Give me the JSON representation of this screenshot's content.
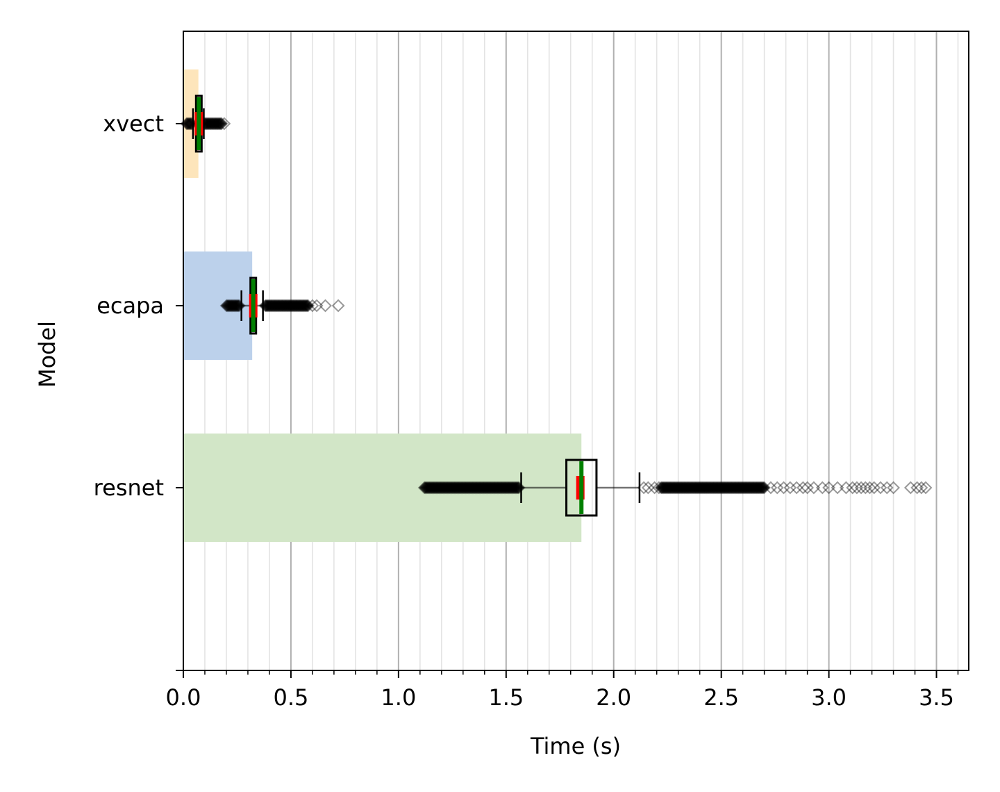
{
  "chart_data": {
    "type": "box",
    "orientation": "horizontal",
    "xlabel": "Time (s)",
    "ylabel": "Model",
    "xlim": [
      0.0,
      3.65
    ],
    "x_major_ticks": [
      0.0,
      0.5,
      1.0,
      1.5,
      2.0,
      2.5,
      3.0,
      3.5
    ],
    "x_tick_labels": [
      "0.0",
      "0.5",
      "1.0",
      "1.5",
      "2.0",
      "2.5",
      "3.0",
      "3.5"
    ],
    "x_minor_step": 0.1,
    "grid": "vertical major and minor",
    "categories": [
      "xvect",
      "ecapa",
      "resnet"
    ],
    "series": [
      {
        "name": "xvect",
        "bar_value": 0.07,
        "bar_color": "#fde5bb",
        "box": {
          "q1": 0.057,
          "median": 0.072,
          "q3": 0.082,
          "whisker_low": 0.045,
          "whisker_high": 0.095,
          "mean": 0.072
        },
        "outlier_ranges": [
          [
            0.015,
            0.04
          ],
          [
            0.098,
            0.18
          ]
        ],
        "sparse_outliers": [
          0.19
        ]
      },
      {
        "name": "ecapa",
        "bar_value": 0.32,
        "bar_color": "#bcd1eb",
        "box": {
          "q1": 0.31,
          "median": 0.325,
          "q3": 0.335,
          "whisker_low": 0.27,
          "whisker_high": 0.37,
          "mean": 0.325
        },
        "outlier_ranges": [
          [
            0.2,
            0.26
          ],
          [
            0.38,
            0.58
          ]
        ],
        "sparse_outliers": [
          0.6,
          0.62,
          0.66,
          0.72
        ]
      },
      {
        "name": "resnet",
        "bar_value": 1.85,
        "bar_color": "#d2e6c7",
        "box": {
          "q1": 1.78,
          "median": 1.85,
          "q3": 1.92,
          "whisker_low": 1.57,
          "whisker_high": 2.12,
          "mean": 1.845
        },
        "outlier_ranges": [
          [
            1.12,
            1.56
          ],
          [
            2.22,
            2.7
          ]
        ],
        "sparse_outliers": [
          2.14,
          2.16,
          2.19,
          2.21,
          2.73,
          2.76,
          2.79,
          2.82,
          2.85,
          2.88,
          2.9,
          2.93,
          2.97,
          3.0,
          3.04,
          3.08,
          3.11,
          3.13,
          3.15,
          3.17,
          3.19,
          3.21,
          3.24,
          3.27,
          3.3,
          3.38,
          3.41,
          3.43,
          3.45
        ]
      }
    ]
  }
}
